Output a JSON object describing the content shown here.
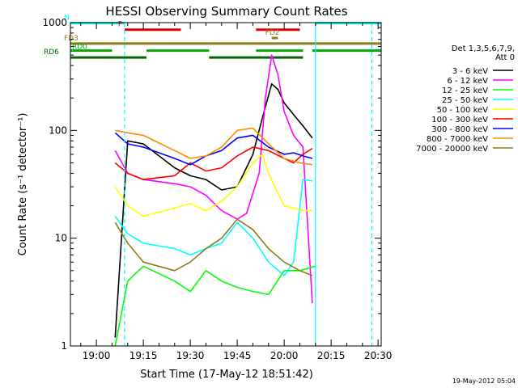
{
  "chart_data": {
    "type": "line",
    "title": "HESSI Observing Summary Count Rates",
    "xlabel": "Start Time (17-May-12 18:51:42)",
    "ylabel": "Count Rate (s⁻¹ detector⁻¹)",
    "y_scale": "log",
    "ylim": [
      1,
      1000
    ],
    "xlim": [
      "18:51:42",
      "20:31:00"
    ],
    "x_tick_labels": [
      "19:00",
      "19:15",
      "19:30",
      "19:45",
      "20:00",
      "20:15",
      "20:30"
    ],
    "y_tick_labels": [
      "1",
      "10",
      "100",
      "1000"
    ],
    "legend_title": [
      "Det 1,3,5,6,7,9,",
      "Att 0"
    ],
    "legend_position": "right",
    "series": [
      {
        "name": "3 - 6 keV",
        "color": "#000000",
        "x": [
          "19:06",
          "19:10",
          "19:15",
          "19:25",
          "19:30",
          "19:35",
          "19:40",
          "19:45",
          "19:50",
          "19:53",
          "19:56",
          "19:58",
          "20:00",
          "20:03",
          "20:06",
          "20:09"
        ],
        "values": [
          1.2,
          80,
          75,
          45,
          38,
          35,
          28,
          30,
          60,
          130,
          270,
          240,
          180,
          140,
          110,
          85
        ]
      },
      {
        "name": "6 - 12 keV",
        "color": "#ff00ff",
        "x": [
          "19:06",
          "19:10",
          "19:15",
          "19:25",
          "19:30",
          "19:35",
          "19:40",
          "19:45",
          "19:48",
          "19:52",
          "19:54",
          "19:56",
          "19:58",
          "20:00",
          "20:03",
          "20:06",
          "20:09"
        ],
        "values": [
          65,
          40,
          35,
          32,
          30,
          25,
          18,
          15,
          17,
          40,
          200,
          500,
          330,
          150,
          90,
          70,
          2.5
        ]
      },
      {
        "name": "12 - 25 keV",
        "color": "#00ff00",
        "x": [
          "19:06",
          "19:10",
          "19:15",
          "19:25",
          "19:30",
          "19:35",
          "19:40",
          "19:45",
          "19:50",
          "19:55",
          "20:00",
          "20:05",
          "20:10"
        ],
        "values": [
          1.0,
          4.0,
          5.5,
          4.0,
          3.2,
          5.0,
          4.0,
          3.5,
          3.2,
          3.0,
          5.0,
          5.0,
          5.5
        ]
      },
      {
        "name": "25 - 50 keV",
        "color": "#00ffff",
        "x": [
          "19:06",
          "19:10",
          "19:15",
          "19:25",
          "19:30",
          "19:35",
          "19:40",
          "19:45",
          "19:50",
          "19:55",
          "20:00",
          "20:03",
          "20:06",
          "20:09"
        ],
        "values": [
          16,
          11,
          9,
          8,
          7,
          8,
          9,
          14,
          10,
          6,
          4.5,
          6,
          35,
          34
        ]
      },
      {
        "name": "50 - 100 keV",
        "color": "#ffff00",
        "x": [
          "19:06",
          "19:10",
          "19:15",
          "19:25",
          "19:30",
          "19:35",
          "19:40",
          "19:45",
          "19:50",
          "19:53",
          "19:55",
          "19:58",
          "20:00",
          "20:03",
          "20:06",
          "20:09"
        ],
        "values": [
          30,
          20,
          16,
          19,
          21,
          18,
          22,
          30,
          50,
          60,
          40,
          26,
          20,
          19,
          18,
          18
        ]
      },
      {
        "name": "100 - 300 keV",
        "color": "#ff0000",
        "x": [
          "19:06",
          "19:10",
          "19:15",
          "19:25",
          "19:30",
          "19:35",
          "19:40",
          "19:45",
          "19:50",
          "19:55",
          "20:00",
          "20:03",
          "20:06",
          "20:09"
        ],
        "values": [
          50,
          40,
          35,
          38,
          50,
          42,
          45,
          58,
          70,
          65,
          55,
          50,
          60,
          68
        ]
      },
      {
        "name": "300 - 800 keV",
        "color": "#0000ff",
        "x": [
          "19:06",
          "19:10",
          "19:15",
          "19:25",
          "19:30",
          "19:35",
          "19:40",
          "19:45",
          "19:50",
          "19:55",
          "20:00",
          "20:03",
          "20:06",
          "20:09"
        ],
        "values": [
          95,
          75,
          70,
          55,
          48,
          58,
          65,
          85,
          90,
          70,
          60,
          62,
          58,
          55
        ]
      },
      {
        "name": "800 - 7000 keV",
        "color": "#ff8c00",
        "x": [
          "19:06",
          "19:10",
          "19:15",
          "19:25",
          "19:30",
          "19:35",
          "19:40",
          "19:45",
          "19:50",
          "19:55",
          "20:00",
          "20:05",
          "20:09"
        ],
        "values": [
          100,
          95,
          90,
          65,
          55,
          58,
          70,
          100,
          105,
          75,
          55,
          50,
          48
        ]
      },
      {
        "name": "7000 - 20000 keV",
        "color": "#8b7d1a",
        "x": [
          "19:06",
          "19:10",
          "19:15",
          "19:25",
          "19:30",
          "19:35",
          "19:40",
          "19:45",
          "19:50",
          "19:55",
          "20:00",
          "20:05",
          "20:09"
        ],
        "values": [
          14,
          9,
          6,
          5,
          6,
          8,
          10,
          15,
          12,
          8,
          6,
          5,
          4.5
        ]
      }
    ],
    "flag_bars": [
      {
        "label": "N",
        "color": "#00ffff",
        "segments": [
          [
            "18:51:42",
            "19:09"
          ],
          [
            "20:10",
            "20:31"
          ]
        ],
        "level": 990
      },
      {
        "label": "F",
        "color": "#dd0000",
        "segments": [
          [
            "19:09",
            "19:27"
          ],
          [
            "19:51",
            "20:05"
          ]
        ],
        "level": 860
      },
      {
        "label": "FD2",
        "color": "#8b7d1a",
        "segments": [
          [
            "19:56",
            "19:58"
          ]
        ],
        "level": 720
      },
      {
        "label": "FD3",
        "color": "#8b7d1a",
        "segments": [
          [
            "18:51:42",
            "20:31"
          ]
        ],
        "level": 640
      },
      {
        "label": "RD0",
        "color": "#00aa00",
        "segments": [
          [
            "18:51:42",
            "19:05"
          ],
          [
            "19:16",
            "19:36"
          ],
          [
            "19:51",
            "20:06"
          ],
          [
            "20:09",
            "20:31"
          ]
        ],
        "level": 550
      },
      {
        "label": "RD6",
        "color": "#006600",
        "segments": [
          [
            "18:51:42",
            "19:16"
          ],
          [
            "19:36",
            "20:06"
          ]
        ],
        "level": 475
      }
    ],
    "vlines": [
      {
        "x": "19:09",
        "color": "#00ffff",
        "style": "dashed"
      },
      {
        "x": "20:10",
        "color": "#00ffff",
        "style": "solid"
      },
      {
        "x": "20:28",
        "color": "#00ffff",
        "style": "dashed"
      }
    ],
    "grid": false
  },
  "footer": {
    "timestamp": "19-May-2012 05:04"
  }
}
